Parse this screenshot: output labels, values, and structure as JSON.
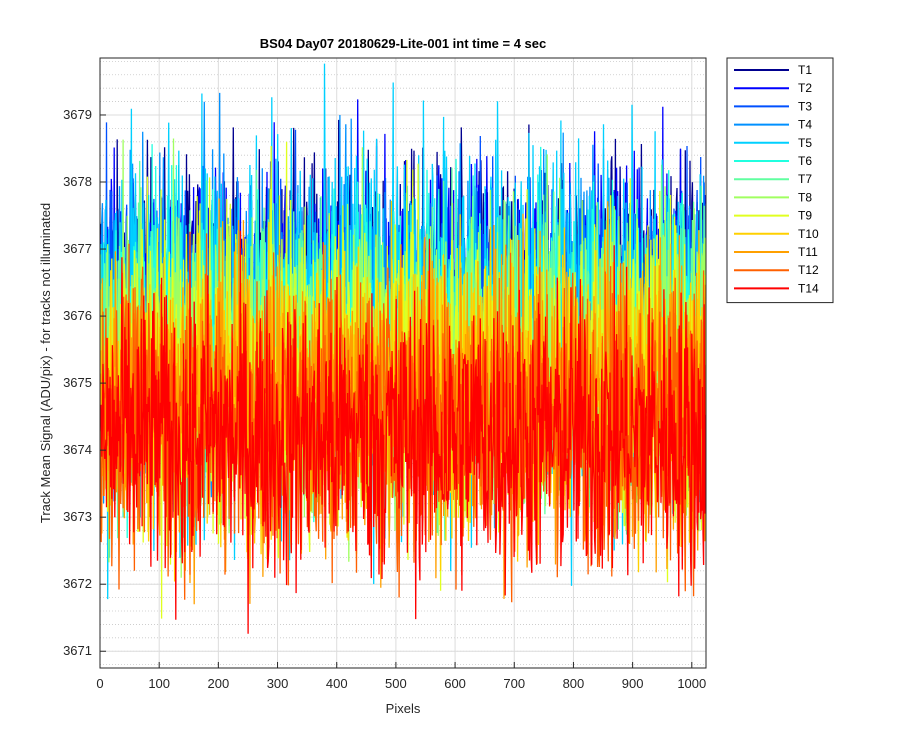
{
  "chart_data": {
    "type": "line",
    "title": "BS04 Day07 20180629-Lite-001 int time = 4 sec",
    "xlabel": "Pixels",
    "ylabel": "Track Mean Signal (ADU/pix) - for tracks not illuminated",
    "xlim": [
      0,
      1024
    ],
    "ylim": [
      3670.75,
      3679.85
    ],
    "x_ticks": [
      0,
      100,
      200,
      300,
      400,
      500,
      600,
      700,
      800,
      900,
      1000
    ],
    "y_ticks": [
      3671,
      3672,
      3673,
      3674,
      3675,
      3676,
      3677,
      3678,
      3679
    ],
    "grid": true,
    "minor_grid": true,
    "legend_position": "outside-right",
    "n_points_per_series": 1024,
    "series": [
      {
        "name": "T1",
        "color": "#00008f",
        "mean": 3676.3,
        "min": 3673.0,
        "max": 3679.3
      },
      {
        "name": "T2",
        "color": "#0000ff",
        "mean": 3676.2,
        "min": 3672.9,
        "max": 3679.3
      },
      {
        "name": "T3",
        "color": "#0050ff",
        "mean": 3676.0,
        "min": 3672.7,
        "max": 3679.0
      },
      {
        "name": "T4",
        "color": "#0090ff",
        "mean": 3675.9,
        "min": 3672.5,
        "max": 3679.6
      },
      {
        "name": "T5",
        "color": "#00d0ff",
        "mean": 3675.8,
        "min": 3670.8,
        "max": 3679.8
      },
      {
        "name": "T6",
        "color": "#20ffe0",
        "mean": 3675.6,
        "min": 3672.3,
        "max": 3679.0
      },
      {
        "name": "T7",
        "color": "#60ffa0",
        "mean": 3675.5,
        "min": 3672.0,
        "max": 3678.9
      },
      {
        "name": "T8",
        "color": "#a0ff60",
        "mean": 3675.3,
        "min": 3671.4,
        "max": 3678.7
      },
      {
        "name": "T9",
        "color": "#e0ff20",
        "mean": 3675.1,
        "min": 3671.2,
        "max": 3678.6
      },
      {
        "name": "T10",
        "color": "#ffd000",
        "mean": 3674.9,
        "min": 3671.8,
        "max": 3678.2
      },
      {
        "name": "T11",
        "color": "#ffa000",
        "mean": 3674.7,
        "min": 3671.1,
        "max": 3678.0
      },
      {
        "name": "T12",
        "color": "#ff6000",
        "mean": 3674.5,
        "min": 3671.1,
        "max": 3677.8
      },
      {
        "name": "T14",
        "color": "#ff0000",
        "mean": 3674.2,
        "min": 3670.9,
        "max": 3677.6
      }
    ]
  }
}
